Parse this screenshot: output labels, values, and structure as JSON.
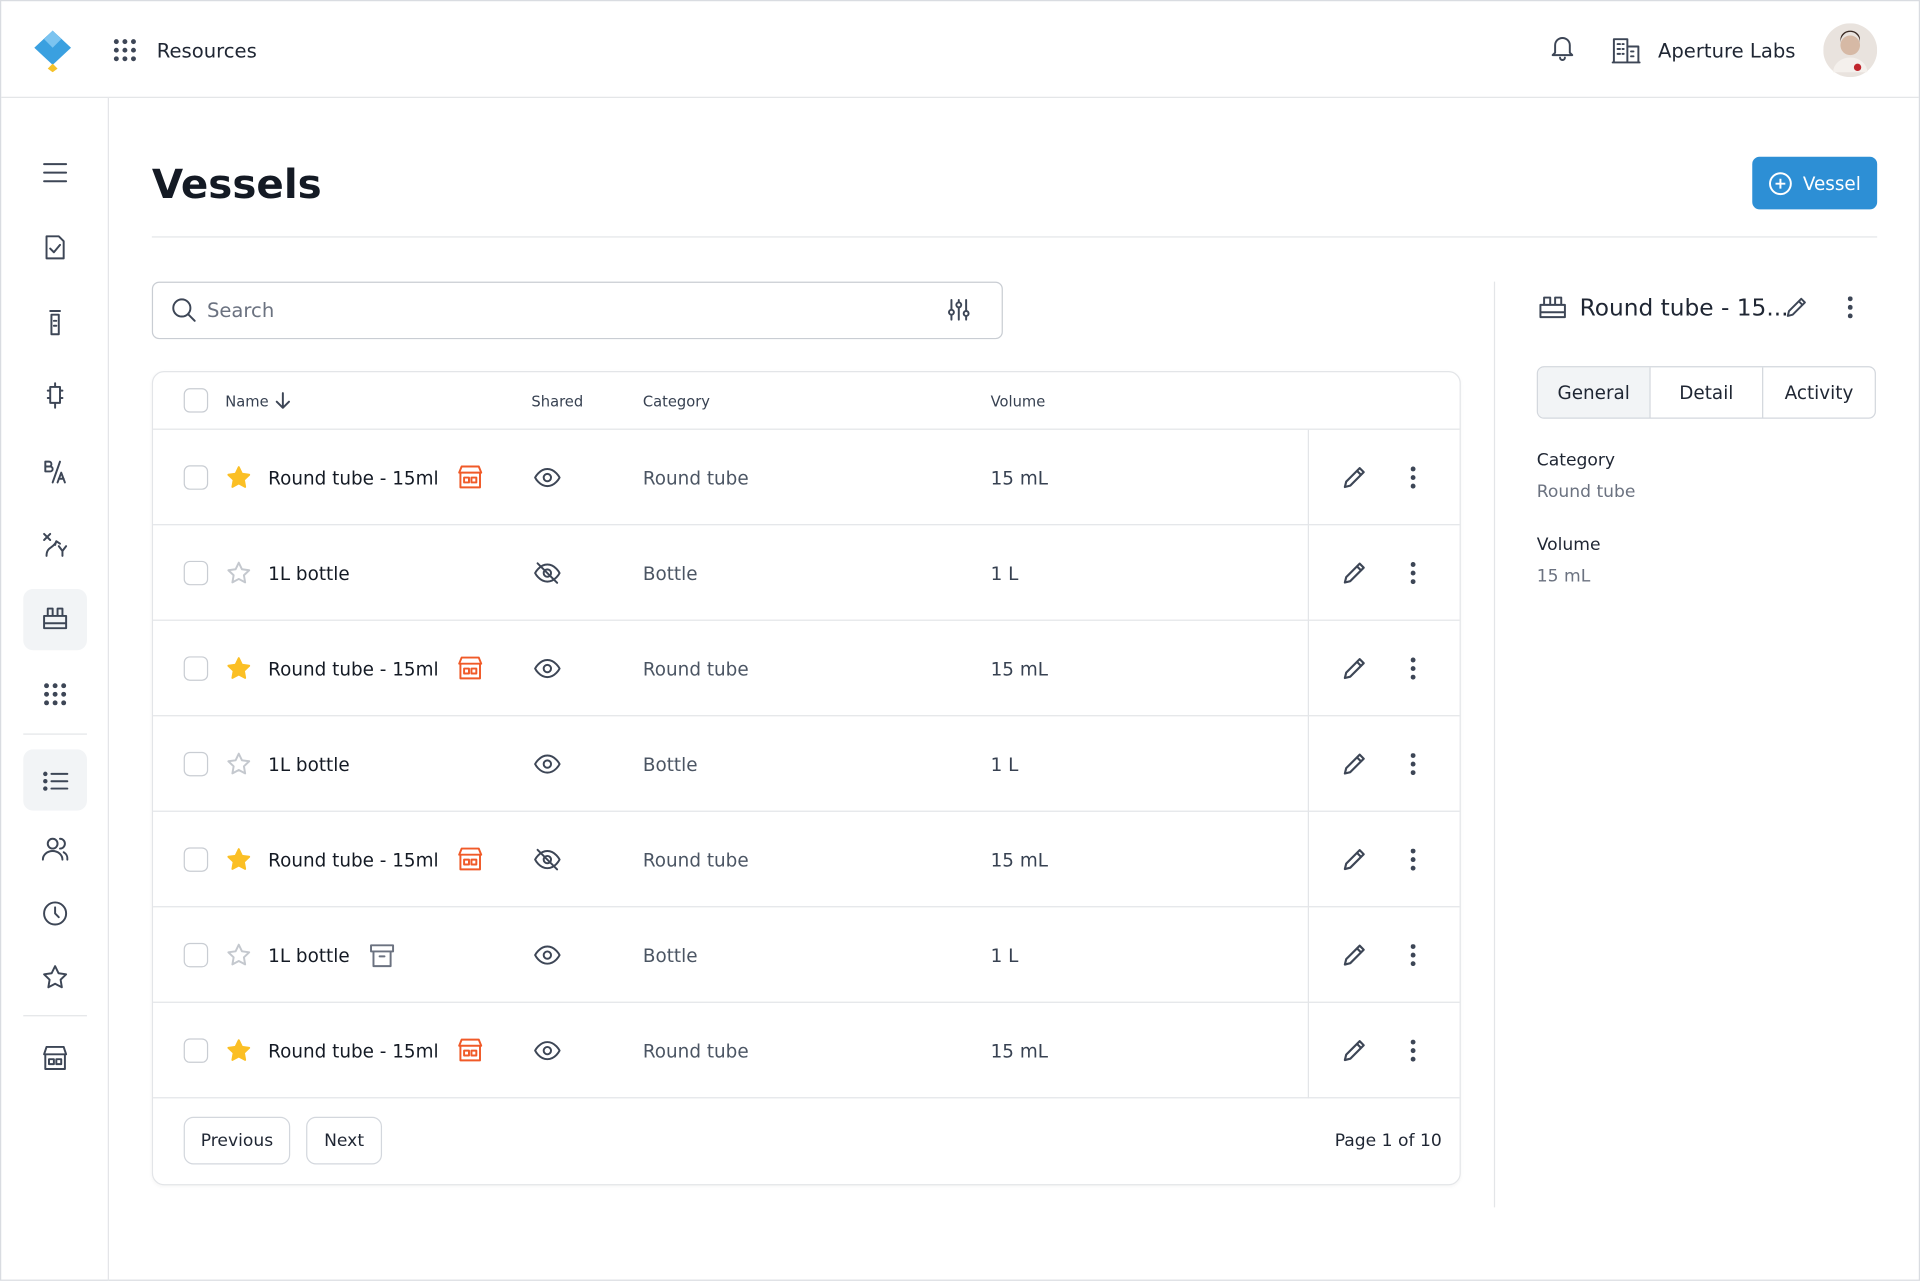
{
  "header": {
    "app": "Resources",
    "organization": "Aperture Labs"
  },
  "page": {
    "title": "Vessels",
    "add_button": "Vessel",
    "search_placeholder": "Search"
  },
  "table": {
    "columns": [
      "Name",
      "Shared",
      "Category",
      "Volume"
    ],
    "rows": [
      {
        "name": "Round tube - 15ml",
        "starred": true,
        "badge": "store",
        "shared": true,
        "category": "Round tube",
        "volume": "15 mL"
      },
      {
        "name": "1L bottle",
        "starred": false,
        "shared": false,
        "category": "Bottle",
        "volume": "1 L"
      },
      {
        "name": "Round tube - 15ml",
        "starred": true,
        "badge": "store",
        "shared": true,
        "category": "Round tube",
        "volume": "15 mL"
      },
      {
        "name": "1L bottle",
        "starred": false,
        "shared": true,
        "category": "Bottle",
        "volume": "1 L"
      },
      {
        "name": "Round tube - 15ml",
        "starred": true,
        "badge": "store",
        "shared": false,
        "category": "Round tube",
        "volume": "15 mL"
      },
      {
        "name": "1L bottle",
        "starred": false,
        "badge": "archive",
        "shared": true,
        "category": "Bottle",
        "volume": "1 L"
      },
      {
        "name": "Round tube - 15ml",
        "starred": true,
        "badge": "store",
        "shared": true,
        "category": "Round tube",
        "volume": "15 mL"
      }
    ],
    "pagination": {
      "previous": "Previous",
      "next": "Next",
      "status": "Page 1 of 10"
    }
  },
  "detail": {
    "title": "Round tube - 15...",
    "tabs": [
      "General",
      "Detail",
      "Activity"
    ],
    "fields": [
      {
        "label": "Category",
        "value": "Round tube"
      },
      {
        "label": "Volume",
        "value": "15 mL"
      }
    ]
  }
}
